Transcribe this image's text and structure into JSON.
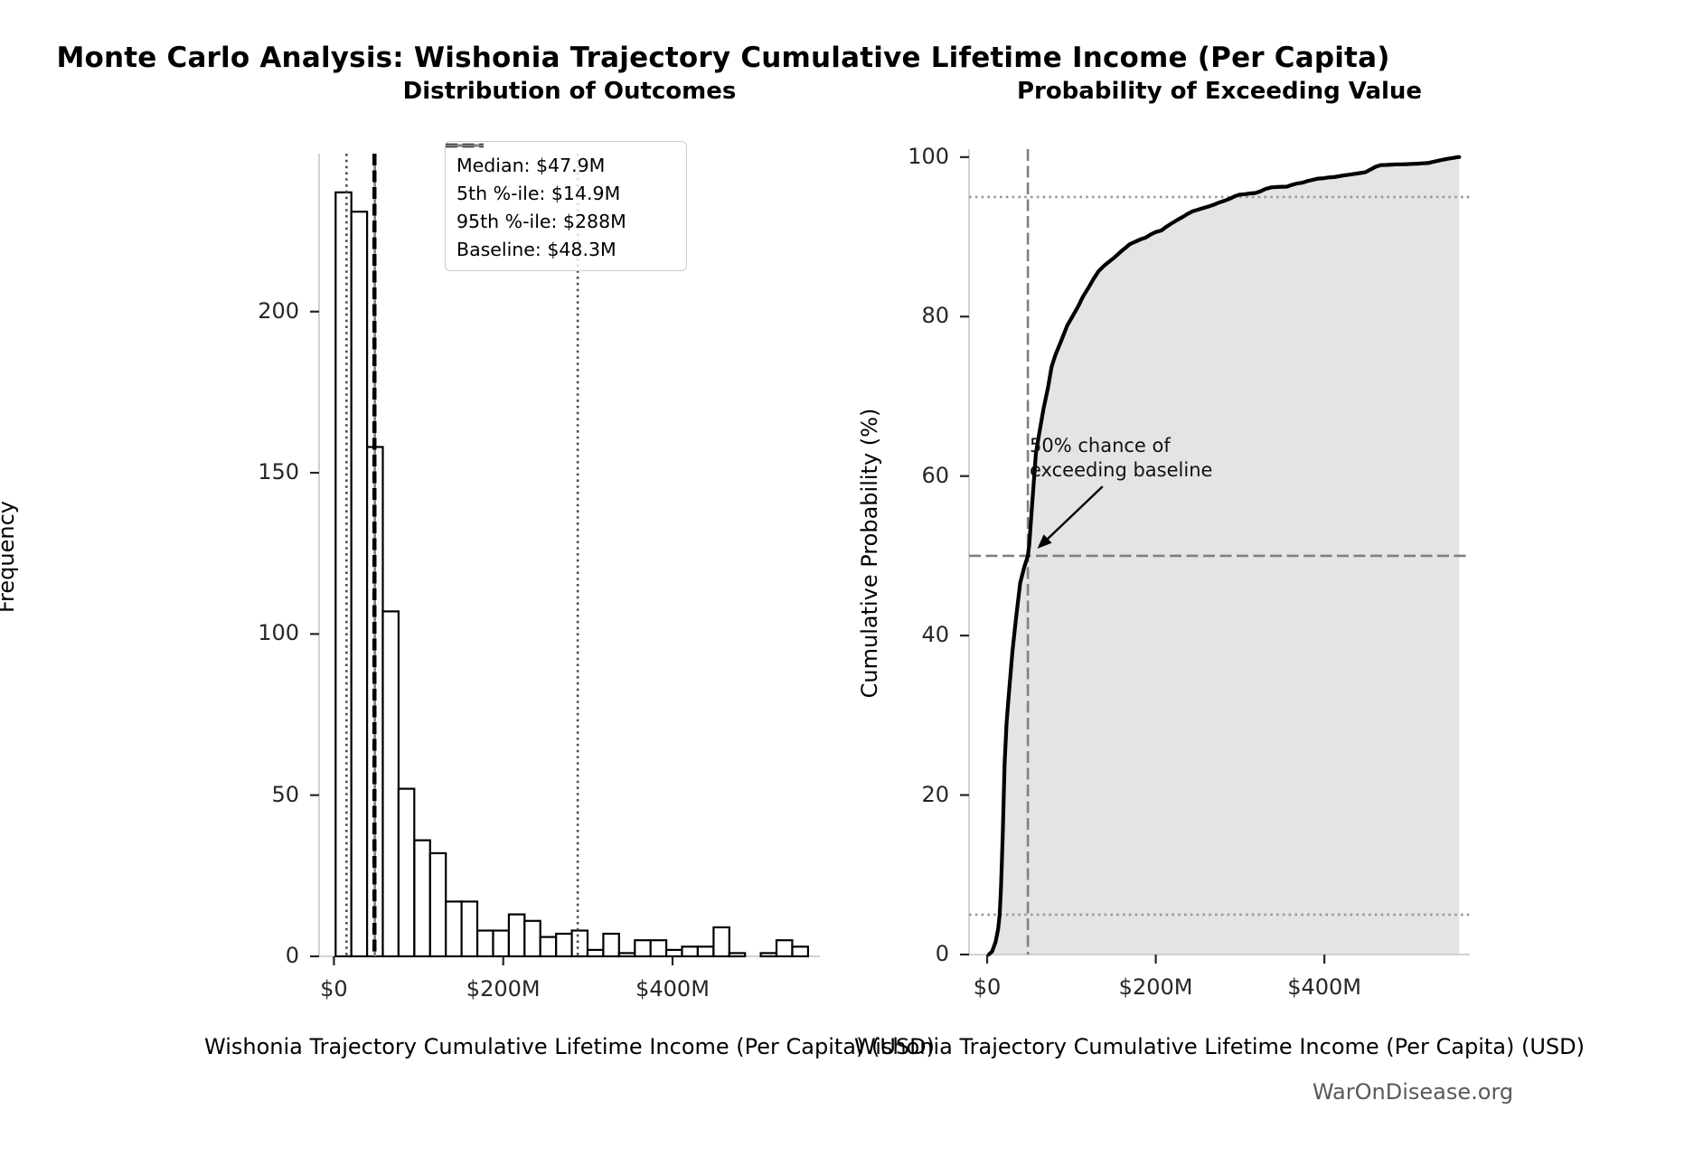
{
  "suptitle": "Monte Carlo Analysis: Wishonia Trajectory Cumulative Lifetime Income (Per Capita)",
  "footer": "WarOnDisease.org",
  "colors": {
    "black": "#000000",
    "dark_dotted": "#4d4d4d",
    "gray_dashed": "#808080",
    "light_dotted": "#999999",
    "baseline_gray": "#808080",
    "cdf_fill": "#e4e4e4",
    "spine": "#cccccc",
    "tick": "#262626",
    "footer_gray": "#595959"
  },
  "chart_data": [
    {
      "type": "bar",
      "subtype": "histogram",
      "title": "Distribution of Outcomes",
      "xlabel": "Wishonia Trajectory Cumulative Lifetime Income (Per Capita) (USD)",
      "ylabel": "Frequency",
      "grid": false,
      "xlim_musd": [
        -17.5,
        574
      ],
      "ylim": [
        0,
        249
      ],
      "bin_start_musd": 2,
      "bin_width_musd": 18.6,
      "counts": [
        237,
        231,
        158,
        107,
        52,
        36,
        32,
        17,
        17,
        8,
        8,
        13,
        11,
        6,
        7,
        8,
        2,
        7,
        1,
        5,
        5,
        2,
        3,
        3,
        9,
        1,
        0,
        1,
        5,
        3
      ],
      "xticks": [
        {
          "v": 0,
          "label": "$0"
        },
        {
          "v": 200,
          "label": "$200M"
        },
        {
          "v": 400,
          "label": "$400M"
        }
      ],
      "yticks": [
        {
          "v": 0,
          "label": "0"
        },
        {
          "v": 50,
          "label": "50"
        },
        {
          "v": 100,
          "label": "100"
        },
        {
          "v": 150,
          "label": "150"
        },
        {
          "v": 200,
          "label": "200"
        }
      ],
      "vlines": [
        {
          "name": "baseline",
          "value_musd": 48.3,
          "style": "solid",
          "color": "#808080",
          "width": 2.6
        },
        {
          "name": "p5",
          "value_musd": 14.9,
          "style": "dotted",
          "color": "#4d4d4d",
          "width": 2.6
        },
        {
          "name": "p95",
          "value_musd": 288,
          "style": "dotted",
          "color": "#4d4d4d",
          "width": 2.6
        },
        {
          "name": "median",
          "value_musd": 47.9,
          "style": "dashed",
          "color": "#000000",
          "width": 4.5
        }
      ],
      "legend": [
        {
          "label": "Median: $47.9M",
          "swatch": "dashed-black"
        },
        {
          "label": "5th %-ile: $14.9M",
          "swatch": "dotted-gray"
        },
        {
          "label": "95th %-ile: $288M",
          "swatch": "dotted-gray"
        },
        {
          "label": "Baseline: $48.3M",
          "swatch": "solid-gray"
        }
      ],
      "legend_position": "upper right"
    },
    {
      "type": "line",
      "subtype": "empirical-cdf",
      "title": "Probability of Exceeding Value",
      "xlabel": "Wishonia Trajectory Cumulative Lifetime Income (Per Capita) (USD)",
      "ylabel": "Cumulative Probability (%)",
      "grid": false,
      "xlim_musd": [
        -21.5,
        572.5
      ],
      "ylim": [
        0,
        101
      ],
      "xticks": [
        {
          "v": 0,
          "label": "$0"
        },
        {
          "v": 200,
          "label": "$200M"
        },
        {
          "v": 400,
          "label": "$400M"
        }
      ],
      "yticks": [
        {
          "v": 0,
          "label": "0"
        },
        {
          "v": 20,
          "label": "20"
        },
        {
          "v": 40,
          "label": "40"
        },
        {
          "v": 60,
          "label": "60"
        },
        {
          "v": 80,
          "label": "80"
        },
        {
          "v": 100,
          "label": "100"
        }
      ],
      "hlines": [
        {
          "name": "p95-level",
          "value_pct": 95,
          "style": "dotted",
          "color": "#999999",
          "width": 2.6
        },
        {
          "name": "p5-level",
          "value_pct": 5,
          "style": "dotted",
          "color": "#999999",
          "width": 2.6
        },
        {
          "name": "fifty-pct",
          "value_pct": 50,
          "style": "dashed",
          "color": "#808080",
          "width": 2.6
        }
      ],
      "vlines": [
        {
          "name": "baseline",
          "value_musd": 48.3,
          "style": "dashed",
          "color": "#808080",
          "width": 2.6
        }
      ],
      "cdf_points": [
        [
          2,
          0
        ],
        [
          6,
          0.4
        ],
        [
          10,
          1.6
        ],
        [
          13,
          3.2
        ],
        [
          14.9,
          5
        ],
        [
          16.5,
          8.5
        ],
        [
          18.5,
          15
        ],
        [
          20.6,
          23.8
        ],
        [
          23,
          29
        ],
        [
          26,
          33
        ],
        [
          30,
          38
        ],
        [
          34,
          42
        ],
        [
          39.2,
          46.6
        ],
        [
          44,
          48.6
        ],
        [
          48.3,
          50
        ],
        [
          50,
          51.5
        ],
        [
          53,
          56
        ],
        [
          57.8,
          62.9
        ],
        [
          62,
          65.5
        ],
        [
          67,
          68.5
        ],
        [
          72,
          71
        ],
        [
          76.4,
          73.7
        ],
        [
          81,
          75.2
        ],
        [
          88,
          77
        ],
        [
          95,
          78.9
        ],
        [
          101,
          80
        ],
        [
          108,
          81.3
        ],
        [
          113.6,
          82.5
        ],
        [
          120,
          83.6
        ],
        [
          126,
          84.7
        ],
        [
          132.2,
          85.7
        ],
        [
          139,
          86.4
        ],
        [
          146,
          87
        ],
        [
          150.8,
          87.4
        ],
        [
          158,
          88.1
        ],
        [
          165,
          88.7
        ],
        [
          169.4,
          89.1
        ],
        [
          176,
          89.4
        ],
        [
          182,
          89.7
        ],
        [
          188,
          89.9
        ],
        [
          194,
          90.3
        ],
        [
          200,
          90.6
        ],
        [
          206.6,
          90.8
        ],
        [
          213,
          91.3
        ],
        [
          219,
          91.7
        ],
        [
          225.2,
          92.1
        ],
        [
          232,
          92.5
        ],
        [
          238,
          92.9
        ],
        [
          243.8,
          93.2
        ],
        [
          250,
          93.4
        ],
        [
          256,
          93.6
        ],
        [
          262.4,
          93.8
        ],
        [
          268,
          94
        ],
        [
          275,
          94.3
        ],
        [
          281,
          94.5
        ],
        [
          288,
          94.8
        ],
        [
          294,
          95.1
        ],
        [
          299.6,
          95.3
        ],
        [
          306,
          95.35
        ],
        [
          312,
          95.45
        ],
        [
          318.2,
          95.5
        ],
        [
          324,
          95.7
        ],
        [
          330,
          96
        ],
        [
          336.8,
          96.2
        ],
        [
          343,
          96.25
        ],
        [
          350,
          96.28
        ],
        [
          355.4,
          96.3
        ],
        [
          361,
          96.5
        ],
        [
          368,
          96.7
        ],
        [
          374,
          96.8
        ],
        [
          380,
          97
        ],
        [
          386,
          97.15
        ],
        [
          392.6,
          97.3
        ],
        [
          399,
          97.35
        ],
        [
          405,
          97.45
        ],
        [
          411.2,
          97.5
        ],
        [
          417,
          97.6
        ],
        [
          423,
          97.7
        ],
        [
          429.8,
          97.8
        ],
        [
          436,
          97.9
        ],
        [
          442,
          98
        ],
        [
          448.4,
          98.1
        ],
        [
          454,
          98.4
        ],
        [
          461,
          98.8
        ],
        [
          467,
          99
        ],
        [
          473,
          99.02
        ],
        [
          480,
          99.06
        ],
        [
          485.6,
          99.1
        ],
        [
          492,
          99.1
        ],
        [
          498,
          99.12
        ],
        [
          504.2,
          99.15
        ],
        [
          510,
          99.18
        ],
        [
          516,
          99.22
        ],
        [
          522.8,
          99.25
        ],
        [
          529,
          99.4
        ],
        [
          535,
          99.55
        ],
        [
          541.4,
          99.7
        ],
        [
          547,
          99.8
        ],
        [
          553,
          99.9
        ],
        [
          558,
          100
        ],
        [
          560,
          100
        ]
      ],
      "fill_between": true,
      "annotation": {
        "text_lines": [
          "50% chance of",
          "exceeding baseline"
        ],
        "arrow_tail_data": [
          137,
          58.7
        ],
        "arrow_head_data": [
          59.5,
          50.9
        ]
      }
    }
  ]
}
